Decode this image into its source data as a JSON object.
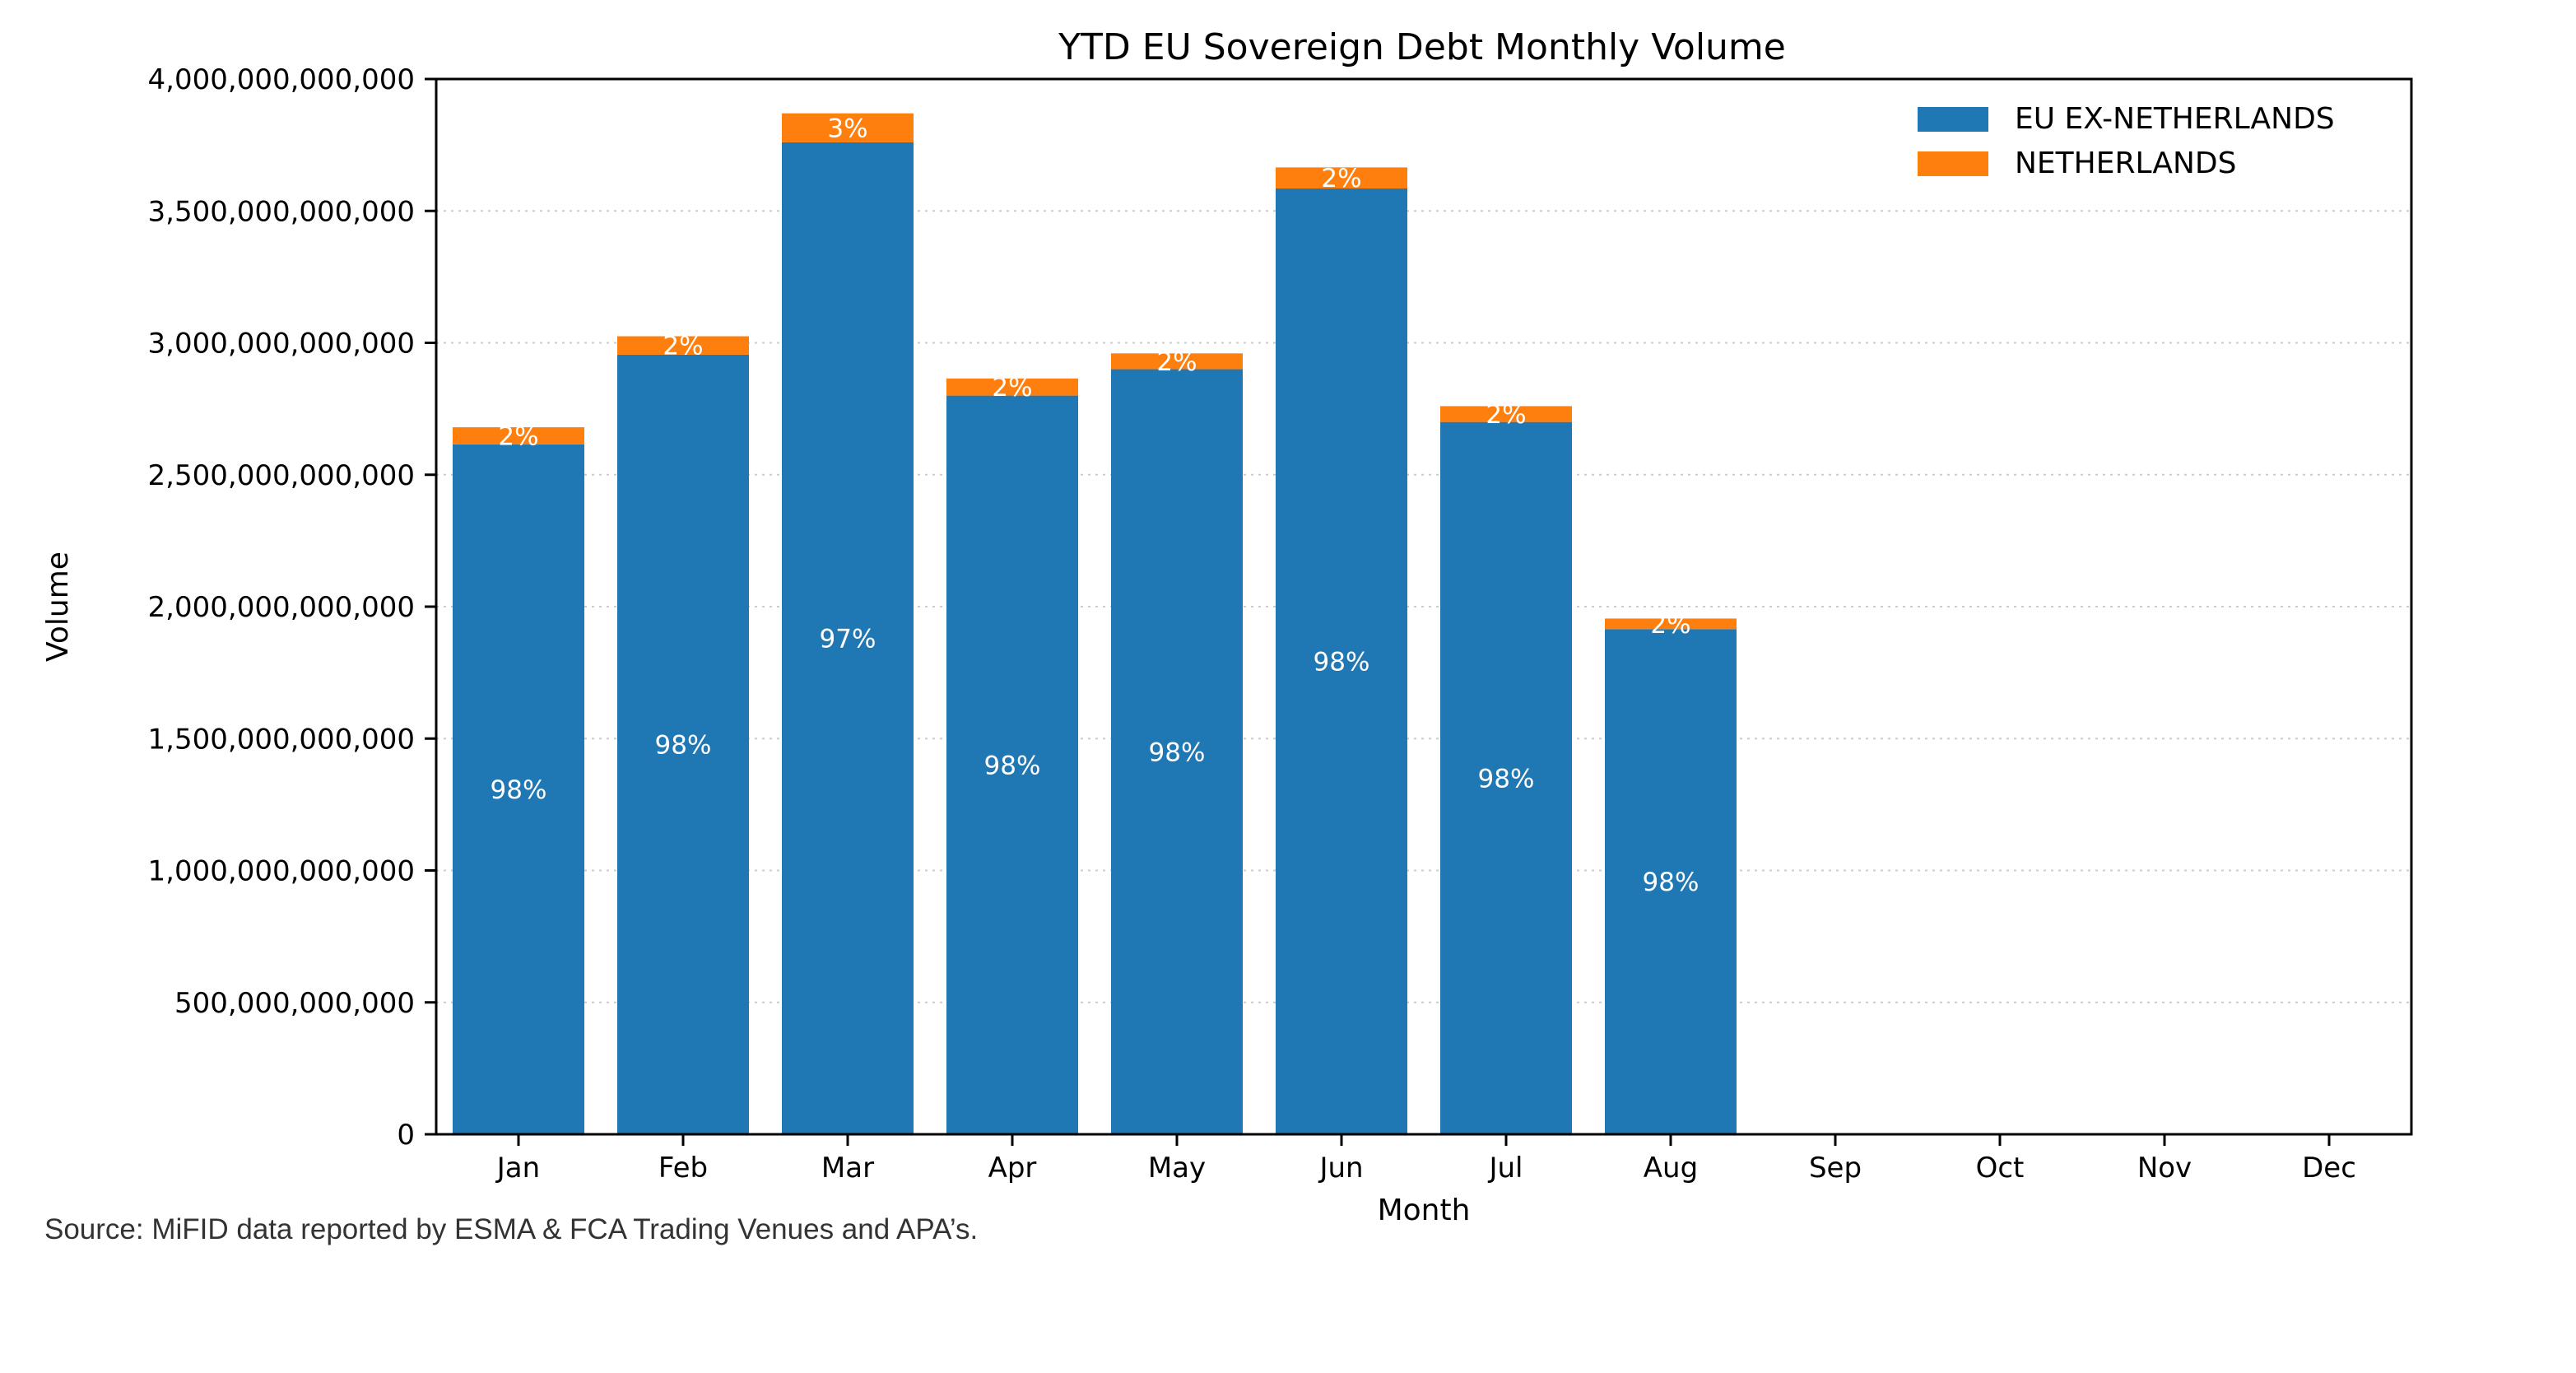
{
  "chart_data": {
    "type": "bar",
    "stacked": true,
    "title": "YTD EU Sovereign Debt Monthly Volume",
    "xlabel": "Month",
    "ylabel": "Volume",
    "ylim": [
      0,
      4000000000000
    ],
    "yticks": [
      0,
      500000000000,
      1000000000000,
      1500000000000,
      2000000000000,
      2500000000000,
      3000000000000,
      3500000000000,
      4000000000000
    ],
    "ytick_labels": [
      "0",
      "500,000,000,000",
      "1,000,000,000,000",
      "1,500,000,000,000",
      "2,000,000,000,000",
      "2,500,000,000,000",
      "3,000,000,000,000",
      "3,500,000,000,000",
      "4,000,000,000,000"
    ],
    "categories": [
      "Jan",
      "Feb",
      "Mar",
      "Apr",
      "May",
      "Jun",
      "Jul",
      "Aug",
      "Sep",
      "Oct",
      "Nov",
      "Dec"
    ],
    "series": [
      {
        "name": "EU EX-NETHERLANDS",
        "color": "#1f77b4",
        "values": [
          2615000000000,
          2955000000000,
          3760000000000,
          2800000000000,
          2900000000000,
          3585000000000,
          2700000000000,
          1915000000000,
          null,
          null,
          null,
          null
        ],
        "labels": [
          "98%",
          "98%",
          "97%",
          "98%",
          "98%",
          "98%",
          "98%",
          "98%",
          null,
          null,
          null,
          null
        ]
      },
      {
        "name": "NETHERLANDS",
        "color": "#ff7f0e",
        "values": [
          65000000000,
          70000000000,
          110000000000,
          65000000000,
          60000000000,
          80000000000,
          60000000000,
          40000000000,
          null,
          null,
          null,
          null
        ],
        "labels": [
          "2%",
          "2%",
          "3%",
          "2%",
          "2%",
          "2%",
          "2%",
          "2%",
          null,
          null,
          null,
          null
        ]
      }
    ],
    "grid": "horizontal-dotted",
    "legend_position": "top-right"
  },
  "source_note": "Source: MiFID data reported by ESMA & FCA Trading Venues and APA’s."
}
